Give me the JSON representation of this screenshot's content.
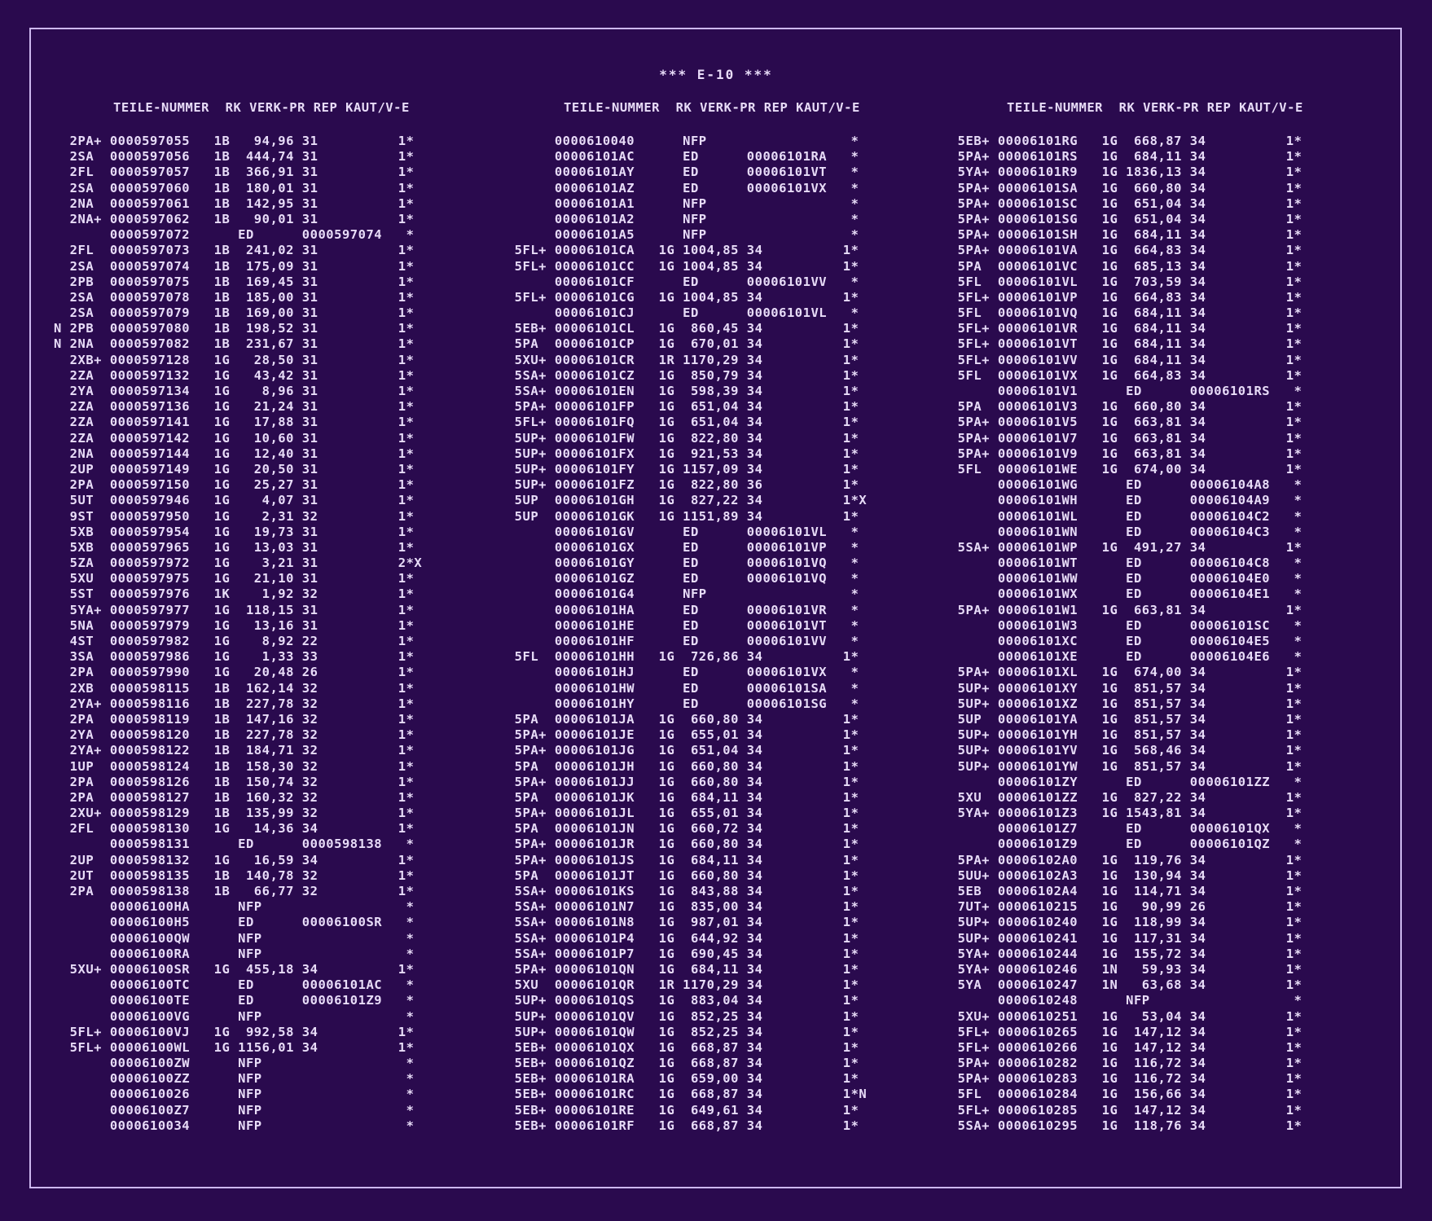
{
  "title": "*** E-10 ***",
  "headers": [
    "TEILE-NUMMER  RK VERK-PR REP KAUT/V-E",
    "TEILE-NUMMER  RK VERK-PR REP KAUT/V-E",
    "TEILE-NUMMER  RK VERK-PR REP KAUT/V-E"
  ],
  "columns": [
    [
      "  2PA+ 0000597055   1B   94,96 31          1*",
      "  2SA  0000597056   1B  444,74 31          1*",
      "  2FL  0000597057   1B  366,91 31          1*",
      "  2SA  0000597060   1B  180,01 31          1*",
      "  2NA  0000597061   1B  142,95 31          1*",
      "  2NA+ 0000597062   1B   90,01 31          1*",
      "       0000597072      ED      0000597074   *",
      "  2FL  0000597073   1B  241,02 31          1*",
      "  2SA  0000597074   1B  175,09 31          1*",
      "  2PB  0000597075   1B  169,45 31          1*",
      "  2SA  0000597078   1B  185,00 31          1*",
      "  2SA  0000597079   1B  169,00 31          1*",
      "N 2PB  0000597080   1B  198,52 31          1*",
      "N 2NA  0000597082   1B  231,67 31          1*",
      "  2XB+ 0000597128   1G   28,50 31          1*",
      "  2ZA  0000597132   1G   43,42 31          1*",
      "  2YA  0000597134   1G    8,96 31          1*",
      "  2ZA  0000597136   1G   21,24 31          1*",
      "  2ZA  0000597141   1G   17,88 31          1*",
      "  2ZA  0000597142   1G   10,60 31          1*",
      "  2NA  0000597144   1G   12,40 31          1*",
      "  2UP  0000597149   1G   20,50 31          1*",
      "  2PA  0000597150   1G   25,27 31          1*",
      "  5UT  0000597946   1G    4,07 31          1*",
      "  9ST  0000597950   1G    2,31 32          1*",
      "  5XB  0000597954   1G   19,73 31          1*",
      "  5XB  0000597965   1G   13,03 31          1*",
      "  5ZA  0000597972   1G    3,21 31          2*X",
      "  5XU  0000597975   1G   21,10 31          1*",
      "  5ST  0000597976   1K    1,92 32          1*",
      "  5YA+ 0000597977   1G  118,15 31          1*",
      "  5NA  0000597979   1G   13,16 31          1*",
      "  4ST  0000597982   1G    8,92 22          1*",
      "  3SA  0000597986   1G    1,33 33          1*",
      "  2PA  0000597990   1G   20,48 26          1*",
      "  2XB  0000598115   1B  162,14 32          1*",
      "  2YA+ 0000598116   1B  227,78 32          1*",
      "  2PA  0000598119   1B  147,16 32          1*",
      "  2YA  0000598120   1B  227,78 32          1*",
      "  2YA+ 0000598122   1B  184,71 32          1*",
      "  1UP  0000598124   1B  158,30 32          1*",
      "  2PA  0000598126   1B  150,74 32          1*",
      "  2PA  0000598127   1B  160,32 32          1*",
      "  2XU+ 0000598129   1B  135,99 32          1*",
      "  2FL  0000598130   1G   14,36 34          1*",
      "       0000598131      ED      0000598138   *",
      "  2UP  0000598132   1G   16,59 34          1*",
      "  2UT  0000598135   1B  140,78 32          1*",
      "  2PA  0000598138   1B   66,77 32          1*",
      "       00006100HA      NFP                  *",
      "       00006100H5      ED      00006100SR   *",
      "       00006100QW      NFP                  *",
      "       00006100RA      NFP                  *",
      "  5XU+ 00006100SR   1G  455,18 34          1*",
      "       00006100TC      ED      00006101AC   *",
      "       00006100TE      ED      00006101Z9   *",
      "       00006100VG      NFP                  *",
      "  5FL+ 00006100VJ   1G  992,58 34          1*",
      "  5FL+ 00006100WL   1G 1156,01 34          1*",
      "       00006100ZW      NFP                  *",
      "       00006100ZZ      NFP                  *",
      "       0000610026      NFP                  *",
      "       00006100Z7      NFP                  *",
      "       0000610034      NFP                  *"
    ],
    [
      "       0000610040      NFP                  *",
      "       00006101AC      ED      00006101RA   *",
      "       00006101AY      ED      00006101VT   *",
      "       00006101AZ      ED      00006101VX   *",
      "       00006101A1      NFP                  *",
      "       00006101A2      NFP                  *",
      "       00006101A5      NFP                  *",
      "  5FL+ 00006101CA   1G 1004,85 34          1*",
      "  5FL+ 00006101CC   1G 1004,85 34          1*",
      "       00006101CF      ED      00006101VV   *",
      "  5FL+ 00006101CG   1G 1004,85 34          1*",
      "       00006101CJ      ED      00006101VL   *",
      "  5EB+ 00006101CL   1G  860,45 34          1*",
      "  5PA  00006101CP   1G  670,01 34          1*",
      "  5XU+ 00006101CR   1R 1170,29 34          1*",
      "  5SA+ 00006101CZ   1G  850,79 34          1*",
      "  5SA+ 00006101EN   1G  598,39 34          1*",
      "  5PA+ 00006101FP   1G  651,04 34          1*",
      "  5FL+ 00006101FQ   1G  651,04 34          1*",
      "  5UP+ 00006101FW   1G  822,80 34          1*",
      "  5UP+ 00006101FX   1G  921,53 34          1*",
      "  5UP+ 00006101FY   1G 1157,09 34          1*",
      "  5UP+ 00006101FZ   1G  822,80 36          1*",
      "  5UP  00006101GH   1G  827,22 34          1*X",
      "  5UP  00006101GK   1G 1151,89 34          1*",
      "       00006101GV      ED      00006101VL   *",
      "       00006101GX      ED      00006101VP   *",
      "       00006101GY      ED      00006101VQ   *",
      "       00006101GZ      ED      00006101VQ   *",
      "       00006101G4      NFP                  *",
      "       00006101HA      ED      00006101VR   *",
      "       00006101HE      ED      00006101VT   *",
      "       00006101HF      ED      00006101VV   *",
      "  5FL  00006101HH   1G  726,86 34          1*",
      "       00006101HJ      ED      00006101VX   *",
      "       00006101HW      ED      00006101SA   *",
      "       00006101HY      ED      00006101SG   *",
      "  5PA  00006101JA   1G  660,80 34          1*",
      "  5PA+ 00006101JE   1G  655,01 34          1*",
      "  5PA+ 00006101JG   1G  651,04 34          1*",
      "  5PA  00006101JH   1G  660,80 34          1*",
      "  5PA+ 00006101JJ   1G  660,80 34          1*",
      "  5PA  00006101JK   1G  684,11 34          1*",
      "  5PA+ 00006101JL   1G  655,01 34          1*",
      "  5PA  00006101JN   1G  660,72 34          1*",
      "  5PA+ 00006101JR   1G  660,80 34          1*",
      "  5PA+ 00006101JS   1G  684,11 34          1*",
      "  5PA  00006101JT   1G  660,80 34          1*",
      "  5SA+ 00006101KS   1G  843,88 34          1*",
      "  5SA+ 00006101N7   1G  835,00 34          1*",
      "  5SA+ 00006101N8   1G  987,01 34          1*",
      "  5SA+ 00006101P4   1G  644,92 34          1*",
      "  5SA+ 00006101P7   1G  690,45 34          1*",
      "  5PA+ 00006101QN   1G  684,11 34          1*",
      "  5XU  00006101QR   1R 1170,29 34          1*",
      "  5UP+ 00006101QS   1G  883,04 34          1*",
      "  5UP+ 00006101QV   1G  852,25 34          1*",
      "  5UP+ 00006101QW   1G  852,25 34          1*",
      "  5EB+ 00006101QX   1G  668,87 34          1*",
      "  5EB+ 00006101QZ   1G  668,87 34          1*",
      "  5EB+ 00006101RA   1G  659,00 34          1*",
      "  5EB+ 00006101RC   1G  668,87 34          1*N",
      "  5EB+ 00006101RE   1G  649,61 34          1*",
      "  5EB+ 00006101RF   1G  668,87 34          1*"
    ],
    [
      "  5EB+ 00006101RG   1G  668,87 34          1*",
      "  5PA+ 00006101RS   1G  684,11 34          1*",
      "  5YA+ 00006101R9   1G 1836,13 34          1*",
      "  5PA+ 00006101SA   1G  660,80 34          1*",
      "  5PA+ 00006101SC   1G  651,04 34          1*",
      "  5PA+ 00006101SG   1G  651,04 34          1*",
      "  5PA+ 00006101SH   1G  684,11 34          1*",
      "  5PA+ 00006101VA   1G  664,83 34          1*",
      "  5PA  00006101VC   1G  685,13 34          1*",
      "  5FL  00006101VL   1G  703,59 34          1*",
      "  5FL+ 00006101VP   1G  664,83 34          1*",
      "  5FL  00006101VQ   1G  684,11 34          1*",
      "  5FL+ 00006101VR   1G  684,11 34          1*",
      "  5FL+ 00006101VT   1G  684,11 34          1*",
      "  5FL+ 00006101VV   1G  684,11 34          1*",
      "  5FL  00006101VX   1G  664,83 34          1*",
      "       00006101V1      ED      00006101RS   *",
      "  5PA  00006101V3   1G  660,80 34          1*",
      "  5PA+ 00006101V5   1G  663,81 34          1*",
      "  5PA+ 00006101V7   1G  663,81 34          1*",
      "  5PA+ 00006101V9   1G  663,81 34          1*",
      "  5FL  00006101WE   1G  674,00 34          1*",
      "       00006101WG      ED      00006104A8   *",
      "       00006101WH      ED      00006104A9   *",
      "       00006101WL      ED      00006104C2   *",
      "       00006101WN      ED      00006104C3   *",
      "  5SA+ 00006101WP   1G  491,27 34          1*",
      "       00006101WT      ED      00006104C8   *",
      "       00006101WW      ED      00006104E0   *",
      "       00006101WX      ED      00006104E1   *",
      "  5PA+ 00006101W1   1G  663,81 34          1*",
      "       00006101W3      ED      00006101SC   *",
      "       00006101XC      ED      00006104E5   *",
      "       00006101XE      ED      00006104E6   *",
      "  5PA+ 00006101XL   1G  674,00 34          1*",
      "  5UP+ 00006101XY   1G  851,57 34          1*",
      "  5UP+ 00006101XZ   1G  851,57 34          1*",
      "  5UP  00006101YA   1G  851,57 34          1*",
      "  5UP+ 00006101YH   1G  851,57 34          1*",
      "  5UP+ 00006101YV   1G  568,46 34          1*",
      "  5UP+ 00006101YW   1G  851,57 34          1*",
      "       00006101ZY      ED      00006101ZZ   *",
      "  5XU  00006101ZZ   1G  827,22 34          1*",
      "  5YA+ 00006101Z3   1G 1543,81 34          1*",
      "       00006101Z7      ED      00006101QX   *",
      "       00006101Z9      ED      00006101QZ   *",
      "  5PA+ 00006102A0   1G  119,76 34          1*",
      "  5UU+ 00006102A3   1G  130,94 34          1*",
      "  5EB  00006102A4   1G  114,71 34          1*",
      "  7UT+ 0000610215   1G   90,99 26          1*",
      "  5UP+ 0000610240   1G  118,99 34          1*",
      "  5UP+ 0000610241   1G  117,31 34          1*",
      "  5YA+ 0000610244   1G  155,72 34          1*",
      "  5YA+ 0000610246   1N   59,93 34          1*",
      "  5YA  0000610247   1N   63,68 34          1*",
      "       0000610248      NFP                  *",
      "  5XU+ 0000610251   1G   53,04 34          1*",
      "  5FL+ 0000610265   1G  147,12 34          1*",
      "  5FL+ 0000610266   1G  147,12 34          1*",
      "  5PA+ 0000610282   1G  116,72 34          1*",
      "  5PA+ 0000610283   1G  116,72 34          1*",
      "  5FL  0000610284   1G  156,66 34          1*",
      "  5FL+ 0000610285   1G  147,12 34          1*",
      "  5SA+ 0000610295   1G  118,76 34          1*"
    ]
  ]
}
